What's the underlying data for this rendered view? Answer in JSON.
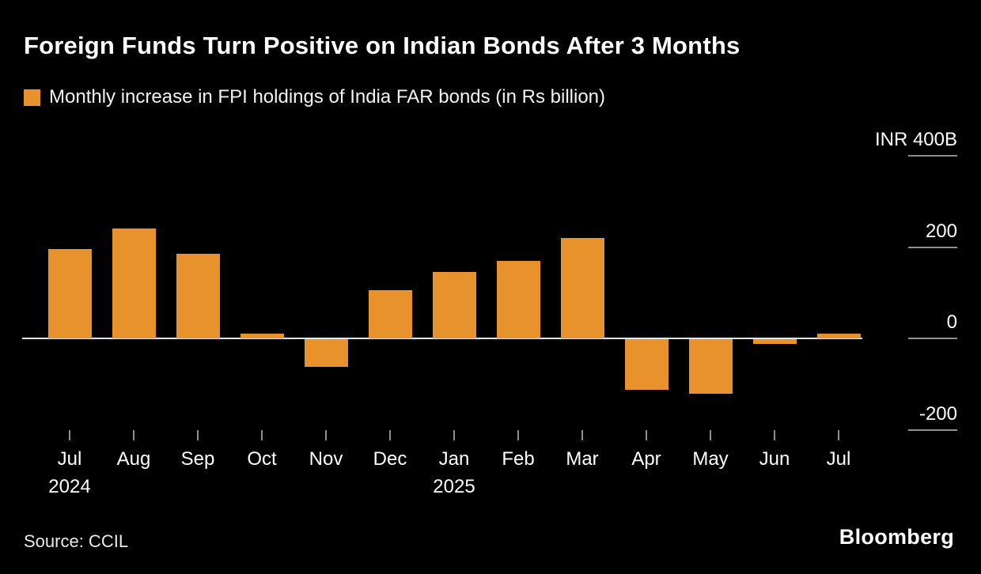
{
  "title": "Foreign Funds Turn Positive on Indian Bonds After 3 Months",
  "legend": {
    "label": "Monthly increase in FPI holdings of India FAR bonds (in Rs billion)"
  },
  "source": "Source: CCIL",
  "branding": "Bloomberg",
  "colors": {
    "bar": "#E8922E",
    "background": "#000000",
    "axis_line": "#E6E6E6",
    "tick": "#8F8F8F"
  },
  "chart_data": {
    "type": "bar",
    "title": "Foreign Funds Turn Positive on Indian Bonds After 3 Months",
    "subtitle": "Monthly increase in FPI holdings of India FAR bonds (in Rs billion)",
    "categories": [
      "Jul",
      "Aug",
      "Sep",
      "Oct",
      "Nov",
      "Dec",
      "Jan",
      "Feb",
      "Mar",
      "Apr",
      "May",
      "Jun",
      "Jul"
    ],
    "values": [
      195,
      240,
      185,
      10,
      -60,
      105,
      145,
      170,
      220,
      -110,
      -120,
      -10,
      10
    ],
    "year_labels": [
      {
        "index": 0,
        "label": "2024"
      },
      {
        "index": 6,
        "label": "2025"
      }
    ],
    "y_axis": [
      {
        "label": "INR 400B",
        "value": 400
      },
      {
        "label": "200",
        "value": 200
      },
      {
        "label": "0",
        "value": 0
      },
      {
        "label": "-200",
        "value": -200
      }
    ],
    "xlabel": "",
    "ylabel": "Rs billion",
    "ylim": [
      -250,
      400
    ],
    "grid": false,
    "legend_position": "top-left"
  }
}
